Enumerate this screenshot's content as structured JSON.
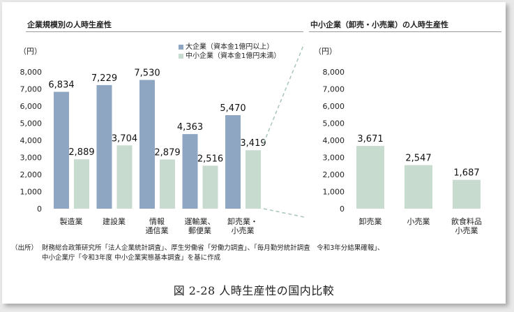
{
  "colors": {
    "large": "#8fa6c2",
    "sme": "#c8dbcf",
    "connector": "#a8c6b4"
  },
  "chart_data": [
    {
      "type": "bar",
      "title": "企業規模別の人時生産性",
      "unit_label": "（円）",
      "ylim": [
        0,
        8000
      ],
      "yticks": [
        "0",
        "1,000",
        "2,000",
        "3,000",
        "4,000",
        "5,000",
        "6,000",
        "7,000",
        "8,000"
      ],
      "categories": [
        [
          "製造業"
        ],
        [
          "建設業"
        ],
        [
          "情報",
          "通信業"
        ],
        [
          "運輸業、",
          "郵便業"
        ],
        [
          "卸売業・",
          "小売業"
        ]
      ],
      "series": [
        {
          "name": "大企業（資本金1億円以上）",
          "values": [
            6834,
            7229,
            7530,
            4363,
            5470
          ],
          "labels": [
            "6,834",
            "7,229",
            "7,530",
            "4,363",
            "5,470"
          ]
        },
        {
          "name": "中小企業（資本金1億円未満）",
          "values": [
            2889,
            3704,
            2879,
            2516,
            3419
          ],
          "labels": [
            "2,889",
            "3,704",
            "2,879",
            "2,516",
            "3,419"
          ]
        }
      ],
      "grid": false,
      "legend": "top-right"
    },
    {
      "type": "bar",
      "title": "中小企業（卸売・小売業）の人時生産性",
      "unit_label": "（円）",
      "ylim": [
        0,
        8000
      ],
      "yticks": [
        "0",
        "1,000",
        "2,000",
        "3,000",
        "4,000",
        "5,000",
        "6,000",
        "7,000",
        "8,000"
      ],
      "categories": [
        [
          "卸売業"
        ],
        [
          "小売業"
        ],
        [
          "飲食料品",
          "小売業"
        ]
      ],
      "series": [
        {
          "values": [
            3671,
            2547,
            1687
          ],
          "labels": [
            "3,671",
            "2,547",
            "1,687"
          ]
        }
      ],
      "grid": false
    }
  ],
  "source": {
    "label": "（出所）",
    "lines": [
      "財務総合政策研究所「法人企業統計調査」、厚生労働省「労働力調査」、「毎月勤労統計調査　令和3年分結果確報」、",
      "中小企業庁「令和3年度 中小企業実態基本調査」を基に作成"
    ]
  },
  "caption": "図 2-28  人時生産性の国内比較"
}
